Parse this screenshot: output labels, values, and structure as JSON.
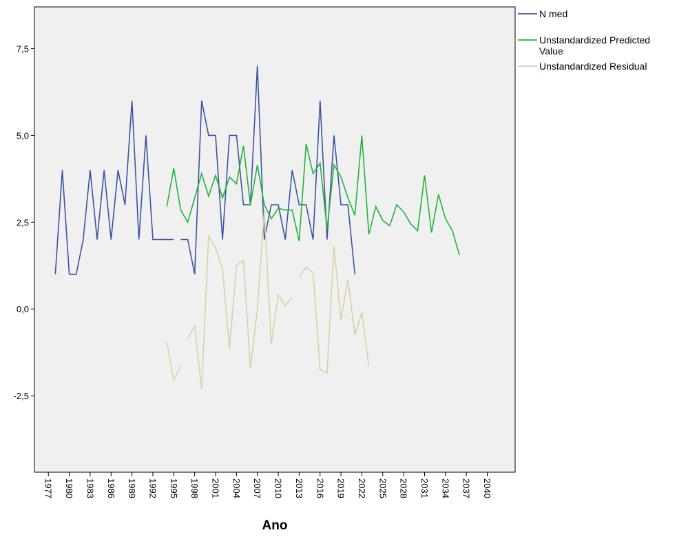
{
  "chart_data": {
    "type": "line",
    "xlabel": "Ano",
    "ylabel": "",
    "xlim": [
      1975,
      2044
    ],
    "ylim": [
      -4.7,
      8.7
    ],
    "x_ticks": [
      1977,
      1980,
      1983,
      1986,
      1989,
      1992,
      1995,
      1998,
      2001,
      2004,
      2007,
      2010,
      2013,
      2016,
      2019,
      2022,
      2025,
      2028,
      2031,
      2034,
      2037,
      2040
    ],
    "y_ticks": [
      -2.5,
      0.0,
      2.5,
      5.0,
      7.5
    ],
    "y_tick_labels": [
      "-2,5",
      "0,0",
      "2,5",
      "5,0",
      "7,5"
    ],
    "grid": false,
    "legend_position": "top-right",
    "plot_background": "#f0f0f0",
    "series": [
      {
        "name": "N med",
        "color": "#3b53a4",
        "points": [
          [
            1978,
            1
          ],
          [
            1979,
            4
          ],
          [
            1980,
            1
          ],
          [
            1981,
            1
          ],
          [
            1982,
            2
          ],
          [
            1983,
            4
          ],
          [
            1984,
            2
          ],
          [
            1985,
            4
          ],
          [
            1986,
            2
          ],
          [
            1987,
            4
          ],
          [
            1988,
            3
          ],
          [
            1989,
            6
          ],
          [
            1990,
            2
          ],
          [
            1991,
            5
          ],
          [
            1992,
            2
          ],
          [
            1993,
            2
          ],
          [
            1994,
            2
          ],
          [
            1995,
            2
          ],
          null,
          [
            1996,
            2
          ],
          [
            1997,
            2
          ],
          [
            1998,
            1
          ],
          [
            1999,
            6
          ],
          [
            2000,
            5
          ],
          [
            2001,
            5
          ],
          [
            2002,
            2
          ],
          [
            2003,
            5
          ],
          [
            2004,
            5
          ],
          [
            2005,
            3
          ],
          [
            2006,
            3
          ],
          [
            2007,
            7
          ],
          [
            2008,
            2
          ],
          [
            2009,
            3
          ],
          [
            2010,
            3
          ],
          [
            2011,
            2
          ],
          [
            2012,
            4
          ],
          [
            2013,
            3
          ],
          [
            2014,
            3
          ],
          [
            2015,
            2
          ],
          [
            2016,
            6
          ],
          [
            2017,
            2
          ],
          [
            2018,
            5
          ],
          [
            2019,
            3
          ],
          [
            2020,
            3
          ],
          [
            2021,
            1
          ]
        ]
      },
      {
        "name": "Unstandardized Predicted Value",
        "color": "#21b23a",
        "points": [
          [
            1994,
            2.95
          ],
          [
            1995,
            4.05
          ],
          [
            1996,
            2.85
          ],
          [
            1997,
            2.5
          ],
          [
            1998,
            3.2
          ],
          [
            1999,
            3.9
          ],
          [
            2000,
            3.25
          ],
          [
            2001,
            3.85
          ],
          [
            2002,
            3.2
          ],
          [
            2003,
            3.8
          ],
          [
            2004,
            3.6
          ],
          [
            2005,
            4.7
          ],
          [
            2006,
            3.0
          ],
          [
            2007,
            4.15
          ],
          [
            2008,
            3.0
          ],
          [
            2009,
            2.6
          ],
          [
            2010,
            2.9
          ],
          [
            2011,
            2.85
          ],
          [
            2012,
            2.85
          ],
          [
            2013,
            1.95
          ],
          [
            2014,
            4.75
          ],
          [
            2015,
            3.9
          ],
          [
            2016,
            4.2
          ],
          [
            2017,
            2.3
          ],
          [
            2018,
            4.15
          ],
          [
            2019,
            3.8
          ],
          [
            2020,
            3.2
          ],
          [
            2021,
            2.7
          ],
          [
            2022,
            5.0
          ],
          [
            2023,
            2.15
          ],
          [
            2024,
            2.95
          ],
          [
            2025,
            2.55
          ],
          [
            2026,
            2.4
          ],
          [
            2027,
            3.0
          ],
          [
            2028,
            2.8
          ],
          [
            2029,
            2.45
          ],
          [
            2030,
            2.25
          ],
          [
            2031,
            3.85
          ],
          [
            2032,
            2.2
          ],
          [
            2033,
            3.3
          ],
          [
            2034,
            2.6
          ],
          [
            2035,
            2.25
          ],
          [
            2036,
            1.55
          ]
        ]
      },
      {
        "name": "Unstandardized Residual",
        "color": "#d9d1a2",
        "points": [
          [
            1994,
            -0.95
          ],
          [
            1995,
            -2.05
          ],
          [
            1996,
            -1.65
          ],
          null,
          [
            1997,
            -0.85
          ],
          [
            1998,
            -0.5
          ],
          [
            1999,
            -2.3
          ],
          [
            2000,
            2.1
          ],
          [
            2001,
            1.75
          ],
          [
            2002,
            1.15
          ],
          [
            2003,
            -1.15
          ],
          [
            2004,
            1.25
          ],
          [
            2005,
            1.4
          ],
          [
            2006,
            -1.7
          ],
          [
            2007,
            0.0
          ],
          [
            2008,
            2.85
          ],
          [
            2009,
            -1.0
          ],
          [
            2010,
            0.4
          ],
          [
            2011,
            0.1
          ],
          [
            2012,
            0.35
          ],
          null,
          [
            2013,
            0.9
          ],
          [
            2014,
            1.2
          ],
          [
            2015,
            1.05
          ],
          [
            2016,
            -1.75
          ],
          [
            2017,
            -1.85
          ],
          [
            2018,
            1.8
          ],
          [
            2019,
            -0.3
          ],
          [
            2020,
            0.85
          ],
          [
            2021,
            -0.75
          ],
          [
            2022,
            -0.1
          ],
          [
            2023,
            -1.65
          ]
        ]
      }
    ]
  }
}
